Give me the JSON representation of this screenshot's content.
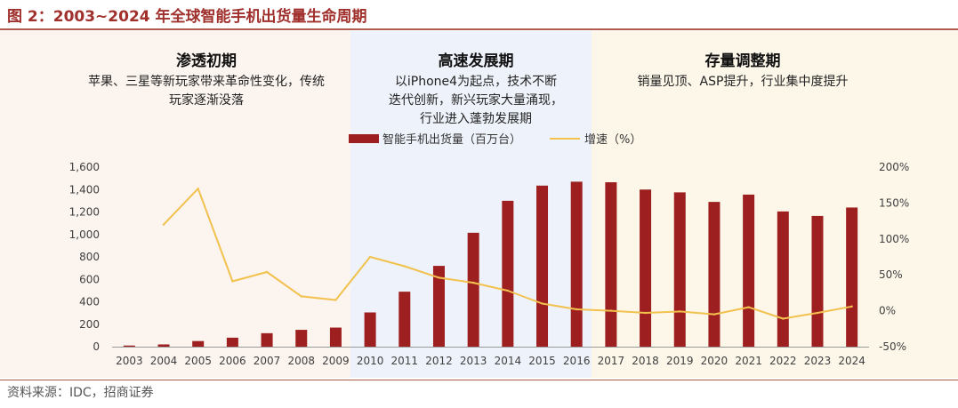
{
  "header": {
    "title": "图 2：2003~2024 年全球智能手机出货量生命周期"
  },
  "footer": {
    "source": "资料来源：IDC，招商证券"
  },
  "phases": [
    {
      "title": "渗透初期",
      "desc": [
        "苹果、三星等新玩家带来革命性变化，传统",
        "玩家逐渐没落"
      ],
      "color": "#fbf4ef"
    },
    {
      "title": "高速发展期",
      "desc": [
        "以iPhone4为起点，技术不断",
        "迭代创新，新兴玩家大量涌现，",
        "行业进入蓬勃发展期"
      ],
      "color": "#eef2fa"
    },
    {
      "title": "存量调整期",
      "desc": [
        "销量见顶、ASP提升，行业集中度提升"
      ],
      "color": "#fdf7ea"
    }
  ],
  "chart_data": {
    "type": "bar",
    "categories": [
      "2003",
      "2004",
      "2005",
      "2006",
      "2007",
      "2008",
      "2009",
      "2010",
      "2011",
      "2012",
      "2013",
      "2014",
      "2015",
      "2016",
      "2017",
      "2018",
      "2019",
      "2020",
      "2021",
      "2022",
      "2023",
      "2024"
    ],
    "series": [
      {
        "name": "智能手机出货量（百万台）",
        "type": "bar",
        "axis": "left",
        "color": "#9e1f1f",
        "values": [
          10,
          20,
          50,
          80,
          120,
          150,
          170,
          305,
          490,
          720,
          1015,
          1300,
          1435,
          1470,
          1465,
          1400,
          1375,
          1290,
          1355,
          1205,
          1165,
          1240
        ]
      },
      {
        "name": "增速（%）",
        "type": "line",
        "axis": "right",
        "color": "#f2c14e",
        "values": [
          null,
          120,
          170,
          41,
          54,
          20,
          15,
          75,
          62,
          46,
          39,
          28,
          10,
          2,
          0,
          -3,
          -1,
          -5,
          5,
          -11,
          -3,
          6
        ]
      }
    ],
    "y_left": {
      "min": 0,
      "max": 1600,
      "step": 200,
      "ticks": [
        "0",
        "200",
        "400",
        "600",
        "800",
        "1,000",
        "1,200",
        "1,400",
        "1,600"
      ]
    },
    "y_right": {
      "min": -50,
      "max": 200,
      "step": 50,
      "ticks": [
        "-50%",
        "0%",
        "50%",
        "100%",
        "150%",
        "200%"
      ]
    },
    "legend_position": "top-center",
    "grid": false
  }
}
